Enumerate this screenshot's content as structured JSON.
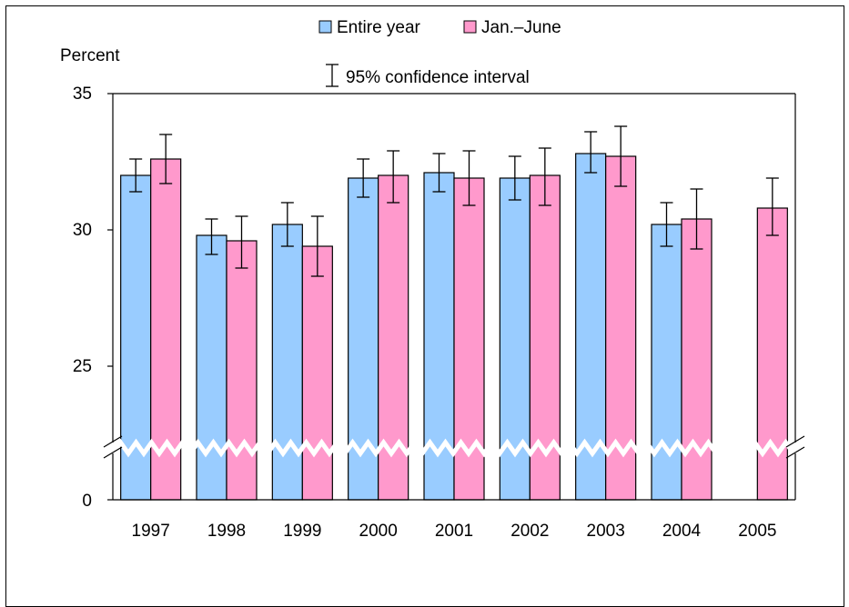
{
  "chart_data": {
    "type": "bar",
    "ylabel": "Percent",
    "categories": [
      "1997",
      "1998",
      "1999",
      "2000",
      "2001",
      "2002",
      "2003",
      "2004",
      "2005"
    ],
    "series": [
      {
        "name": "Entire year",
        "color": "#99ccff",
        "values": [
          32.0,
          29.8,
          30.2,
          31.9,
          32.1,
          31.9,
          32.8,
          30.2,
          null
        ],
        "ci_low": [
          31.4,
          29.1,
          29.4,
          31.2,
          31.4,
          31.1,
          32.1,
          29.4,
          null
        ],
        "ci_high": [
          32.6,
          30.4,
          31.0,
          32.6,
          32.8,
          32.7,
          33.6,
          31.0,
          null
        ]
      },
      {
        "name": "Jan.–June",
        "color": "#ff99cc",
        "values": [
          32.6,
          29.6,
          29.4,
          32.0,
          31.9,
          32.0,
          32.7,
          30.4,
          30.8
        ],
        "ci_low": [
          31.7,
          28.6,
          28.3,
          31.0,
          30.9,
          30.9,
          31.6,
          29.3,
          29.8
        ],
        "ci_high": [
          33.5,
          30.5,
          30.5,
          32.9,
          32.9,
          33.0,
          33.8,
          31.5,
          31.9
        ]
      }
    ],
    "ci_legend": "95% confidence interval",
    "y_ticks": [
      "35",
      "30",
      "25",
      "0"
    ],
    "ylim": [
      25,
      35
    ],
    "axis_break": true,
    "grid": false,
    "legend_position": "top-center"
  }
}
